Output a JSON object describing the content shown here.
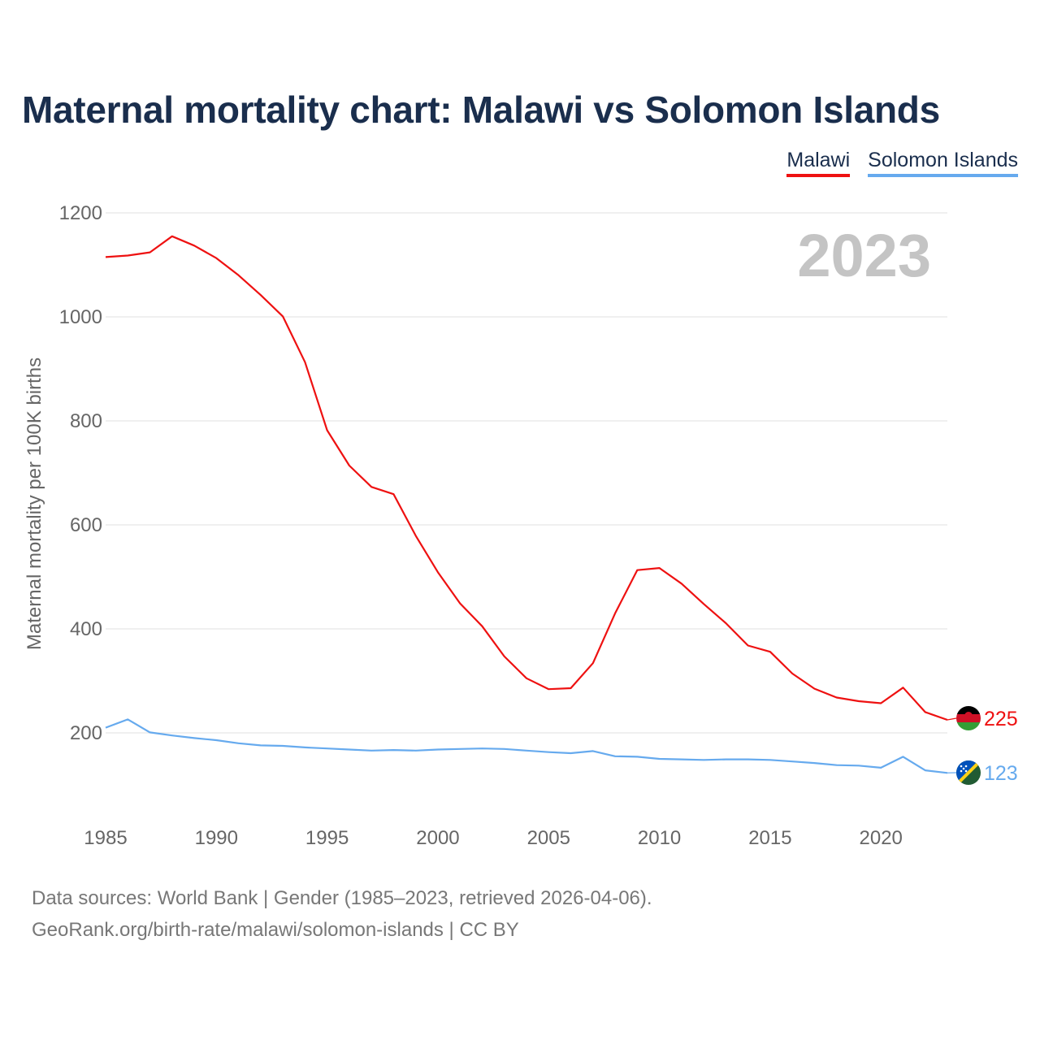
{
  "title": "Maternal mortality chart: Malawi vs Solomon Islands",
  "legend": [
    {
      "name": "Malawi",
      "color": "#ee1111"
    },
    {
      "name": "Solomon Islands",
      "color": "#66aaee"
    }
  ],
  "footer": {
    "line1": "Data sources: World Bank | Gender (1985–2023, retrieved 2026-04-06).",
    "line2": "GeoRank.org/birth-rate/malawi/solomon-islands | CC BY"
  },
  "chart_data": {
    "type": "line",
    "title": "Maternal mortality chart: Malawi vs Solomon Islands",
    "ylabel": "Maternal mortality per 100K births",
    "xlabel": "",
    "year_label": "2023",
    "xlim": [
      1985,
      2023
    ],
    "ylim": [
      0,
      1200
    ],
    "x_ticks": [
      1985,
      1990,
      1995,
      2000,
      2005,
      2010,
      2015,
      2020
    ],
    "y_ticks": [
      200,
      400,
      600,
      800,
      1000,
      1200
    ],
    "grid": true,
    "legend_position": "top-right",
    "x": [
      1985,
      1986,
      1987,
      1988,
      1989,
      1990,
      1991,
      1992,
      1993,
      1994,
      1995,
      1996,
      1997,
      1998,
      1999,
      2000,
      2001,
      2002,
      2003,
      2004,
      2005,
      2006,
      2007,
      2008,
      2009,
      2010,
      2011,
      2012,
      2013,
      2014,
      2015,
      2016,
      2017,
      2018,
      2019,
      2020,
      2021,
      2022,
      2023
    ],
    "series": [
      {
        "name": "Malawi",
        "color": "#ee1111",
        "end_label": "225",
        "flag": "malawi-flag",
        "values": [
          1115,
          1118,
          1124,
          1155,
          1137,
          1113,
          1080,
          1042,
          1001,
          913,
          782,
          714,
          673,
          659,
          579,
          509,
          449,
          405,
          347,
          305,
          284,
          286,
          334,
          430,
          513,
          517,
          487,
          448,
          411,
          368,
          356,
          314,
          285,
          268,
          261,
          257,
          287,
          240,
          225
        ]
      },
      {
        "name": "Solomon Islands",
        "color": "#66aaee",
        "end_label": "123",
        "flag": "solomon-islands-flag",
        "values": [
          210,
          226,
          201,
          195,
          190,
          186,
          180,
          176,
          175,
          172,
          170,
          168,
          166,
          167,
          166,
          168,
          169,
          170,
          169,
          166,
          163,
          161,
          165,
          155,
          154,
          150,
          149,
          148,
          149,
          149,
          148,
          145,
          142,
          138,
          137,
          133,
          154,
          128,
          123
        ]
      }
    ]
  }
}
